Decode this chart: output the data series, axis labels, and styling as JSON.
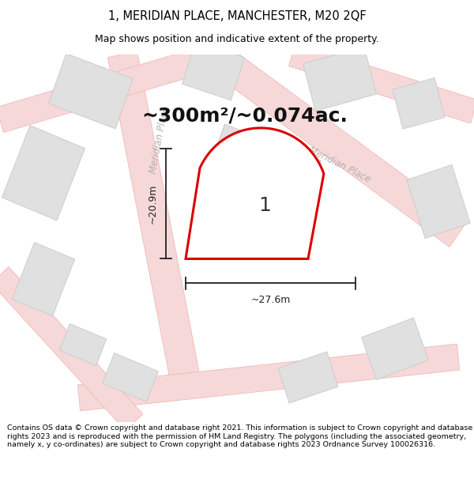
{
  "title_line1": "1, MERIDIAN PLACE, MANCHESTER, M20 2QF",
  "title_line2": "Map shows position and indicative extent of the property.",
  "area_text": "~300m²/~0.074ac.",
  "plot_number": "1",
  "width_label": "~27.6m",
  "height_label": "~20.9m",
  "footer_text": "Contains OS data © Crown copyright and database right 2021. This information is subject to Crown copyright and database rights 2023 and is reproduced with the permission of HM Land Registry. The polygons (including the associated geometry, namely x, y co-ordinates) are subject to Crown copyright and database rights 2023 Ordnance Survey 100026316.",
  "bg_color": "#f2f2f2",
  "map_bg_color": "#f2f2f2",
  "road_color_fill": "#f7d8d8",
  "road_color_edge": "#f0b8b8",
  "building_fill": "#e0e0e0",
  "building_edge": "#cccccc",
  "plot_fill": "#eeeeee",
  "plot_edge_color": "#dd0000",
  "plot_edge_width": 2.2,
  "dim_line_color": "#222222",
  "title_fontsize": 10.5,
  "subtitle_fontsize": 9,
  "area_fontsize": 18,
  "plot_label_fontsize": 18,
  "dim_fontsize": 9,
  "footer_fontsize": 6.8,
  "road_label_color": "#aaaaaa",
  "road_label_fontsize": 8.5
}
